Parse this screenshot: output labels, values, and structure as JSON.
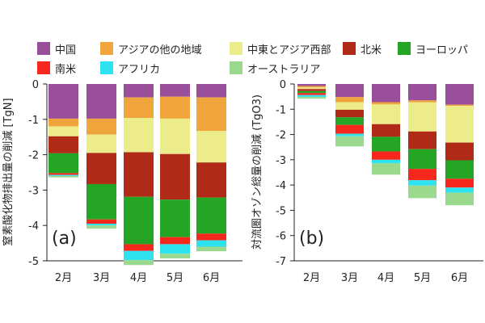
{
  "legend": [
    {
      "name": "中国",
      "color": "#9a4f9a"
    },
    {
      "name": "アジアの他の地域",
      "color": "#f0a43c"
    },
    {
      "name": "中東とアジア西部",
      "color": "#ecec8a"
    },
    {
      "name": "北米",
      "color": "#b02a17"
    },
    {
      "name": "ヨーロッパ",
      "color": "#24a524"
    },
    {
      "name": "南米",
      "color": "#f6281d"
    },
    {
      "name": "アフリカ",
      "color": "#2ee2f0"
    },
    {
      "name": "オーストラリア",
      "color": "#9ad98e"
    }
  ],
  "chart_data": [
    {
      "type": "bar",
      "stacked": true,
      "panel_label": "(a)",
      "ylabel": "窒素酸化物排出量の削減 [TgN]",
      "categories": [
        "2月",
        "3月",
        "4月",
        "5月",
        "6月"
      ],
      "ylim": [
        -5,
        0
      ],
      "yticks": [
        0,
        -1,
        -2,
        -3,
        -4,
        -5
      ],
      "series": [
        {
          "name": "中国",
          "values": [
            -0.98,
            -0.98,
            -0.38,
            -0.36,
            -0.38
          ]
        },
        {
          "name": "アジアの他の地域",
          "values": [
            -0.22,
            -0.45,
            -0.58,
            -0.62,
            -0.95
          ]
        },
        {
          "name": "中東とアジア西部",
          "values": [
            -0.28,
            -0.52,
            -0.97,
            -1.0,
            -0.89
          ]
        },
        {
          "name": "北米",
          "values": [
            -0.48,
            -0.88,
            -1.26,
            -1.29,
            -0.99
          ]
        },
        {
          "name": "ヨーロッパ",
          "values": [
            -0.56,
            -1.0,
            -1.34,
            -1.06,
            -1.02
          ]
        },
        {
          "name": "南米",
          "values": [
            -0.05,
            -0.12,
            -0.19,
            -0.2,
            -0.19
          ]
        },
        {
          "name": "アフリカ",
          "values": [
            -0.03,
            -0.05,
            -0.26,
            -0.27,
            -0.18
          ]
        },
        {
          "name": "オーストラリア",
          "values": [
            -0.04,
            -0.09,
            -0.14,
            -0.13,
            -0.13
          ]
        }
      ]
    },
    {
      "type": "bar",
      "stacked": true,
      "panel_label": "(b)",
      "ylabel": "対流圏オゾン総量の削減 (TgO3)",
      "categories": [
        "2月",
        "3月",
        "4月",
        "5月",
        "6月"
      ],
      "ylim": [
        -7,
        0
      ],
      "yticks": [
        0,
        -1,
        -2,
        -3,
        -4,
        -5,
        -6,
        -7
      ],
      "series": [
        {
          "name": "中国",
          "values": [
            -0.08,
            -0.52,
            -0.72,
            -0.65,
            -0.82
          ]
        },
        {
          "name": "アジアの他の地域",
          "values": [
            -0.06,
            -0.2,
            -0.09,
            -0.08,
            -0.05
          ]
        },
        {
          "name": "中東とアジア西部",
          "values": [
            -0.06,
            -0.3,
            -0.78,
            -1.15,
            -1.45
          ]
        },
        {
          "name": "北米",
          "values": [
            -0.08,
            -0.3,
            -0.5,
            -0.7,
            -0.7
          ]
        },
        {
          "name": "ヨーロッパ",
          "values": [
            -0.08,
            -0.3,
            -0.58,
            -0.78,
            -0.73
          ]
        },
        {
          "name": "南米",
          "values": [
            -0.08,
            -0.35,
            -0.33,
            -0.45,
            -0.35
          ]
        },
        {
          "name": "アフリカ",
          "values": [
            -0.07,
            -0.1,
            -0.14,
            -0.21,
            -0.2
          ]
        },
        {
          "name": "オーストラリア",
          "values": [
            -0.07,
            -0.4,
            -0.45,
            -0.5,
            -0.5
          ]
        }
      ]
    }
  ]
}
